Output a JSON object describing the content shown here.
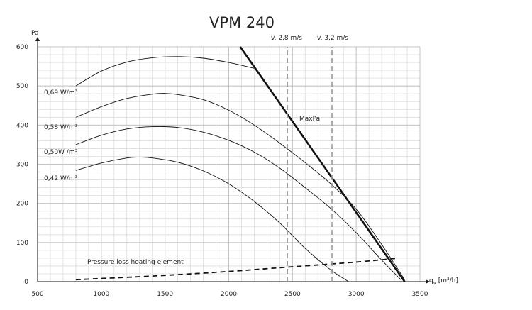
{
  "chart_data": {
    "type": "line",
    "title": "VPM 240",
    "xlabel": "q",
    "xlabel_sub": "v",
    "xlabel_unit": " [m³/h]",
    "ylabel": "Pa",
    "xlim": [
      500,
      3500
    ],
    "ylim": [
      0,
      600
    ],
    "x_ticks": [
      500,
      1000,
      1500,
      2000,
      2500,
      3000,
      3500
    ],
    "y_ticks": [
      0,
      100,
      200,
      300,
      400,
      500,
      600
    ],
    "x_minor_step": 100,
    "y_minor_step": 20,
    "grid": true,
    "series": [
      {
        "name": "0,69 W/m³",
        "style": "thin",
        "x": [
          800,
          1000,
          1200,
          1400,
          1600,
          1800,
          2000,
          2200
        ],
        "y": [
          500,
          538,
          561,
          572,
          575,
          571,
          560,
          545
        ]
      },
      {
        "name": "0,58 W/m³",
        "style": "thin",
        "x": [
          800,
          1000,
          1200,
          1400,
          1500,
          1600,
          1800,
          2000,
          2200,
          2400,
          2600,
          2800,
          3000,
          3200,
          3380
        ],
        "y": [
          420,
          447,
          468,
          479,
          481,
          478,
          465,
          438,
          400,
          354,
          304,
          250,
          185,
          95,
          5
        ]
      },
      {
        "name": "0,50W /m³",
        "style": "thin",
        "x": [
          800,
          1000,
          1200,
          1400,
          1600,
          1800,
          2000,
          2200,
          2400,
          2600,
          2800,
          3000,
          3200,
          3350
        ],
        "y": [
          350,
          374,
          390,
          396,
          394,
          382,
          361,
          331,
          290,
          240,
          187,
          125,
          55,
          5
        ]
      },
      {
        "name": "0,42 W/m³",
        "style": "thin",
        "x": [
          800,
          1000,
          1200,
          1300,
          1400,
          1600,
          1800,
          2000,
          2200,
          2400,
          2600,
          2800,
          2940
        ],
        "y": [
          284,
          303,
          316,
          318,
          316,
          305,
          283,
          250,
          205,
          150,
          85,
          30,
          0
        ]
      },
      {
        "name": "MaxPa",
        "style": "thick",
        "x": [
          2090,
          3380
        ],
        "y": [
          600,
          0
        ]
      },
      {
        "name": "Pressure loss heating element",
        "style": "dashed",
        "x": [
          800,
          1000,
          1500,
          2000,
          2500,
          3000,
          3330
        ],
        "y": [
          5,
          8,
          16,
          26,
          38,
          50,
          60
        ]
      },
      {
        "name": "v. 2,8 m/s",
        "style": "vref",
        "x": [
          2460,
          2460
        ],
        "y": [
          0,
          600
        ]
      },
      {
        "name": "v. 3,2 m/s",
        "style": "vref",
        "x": [
          2810,
          2810
        ],
        "y": [
          0,
          600
        ]
      }
    ]
  }
}
